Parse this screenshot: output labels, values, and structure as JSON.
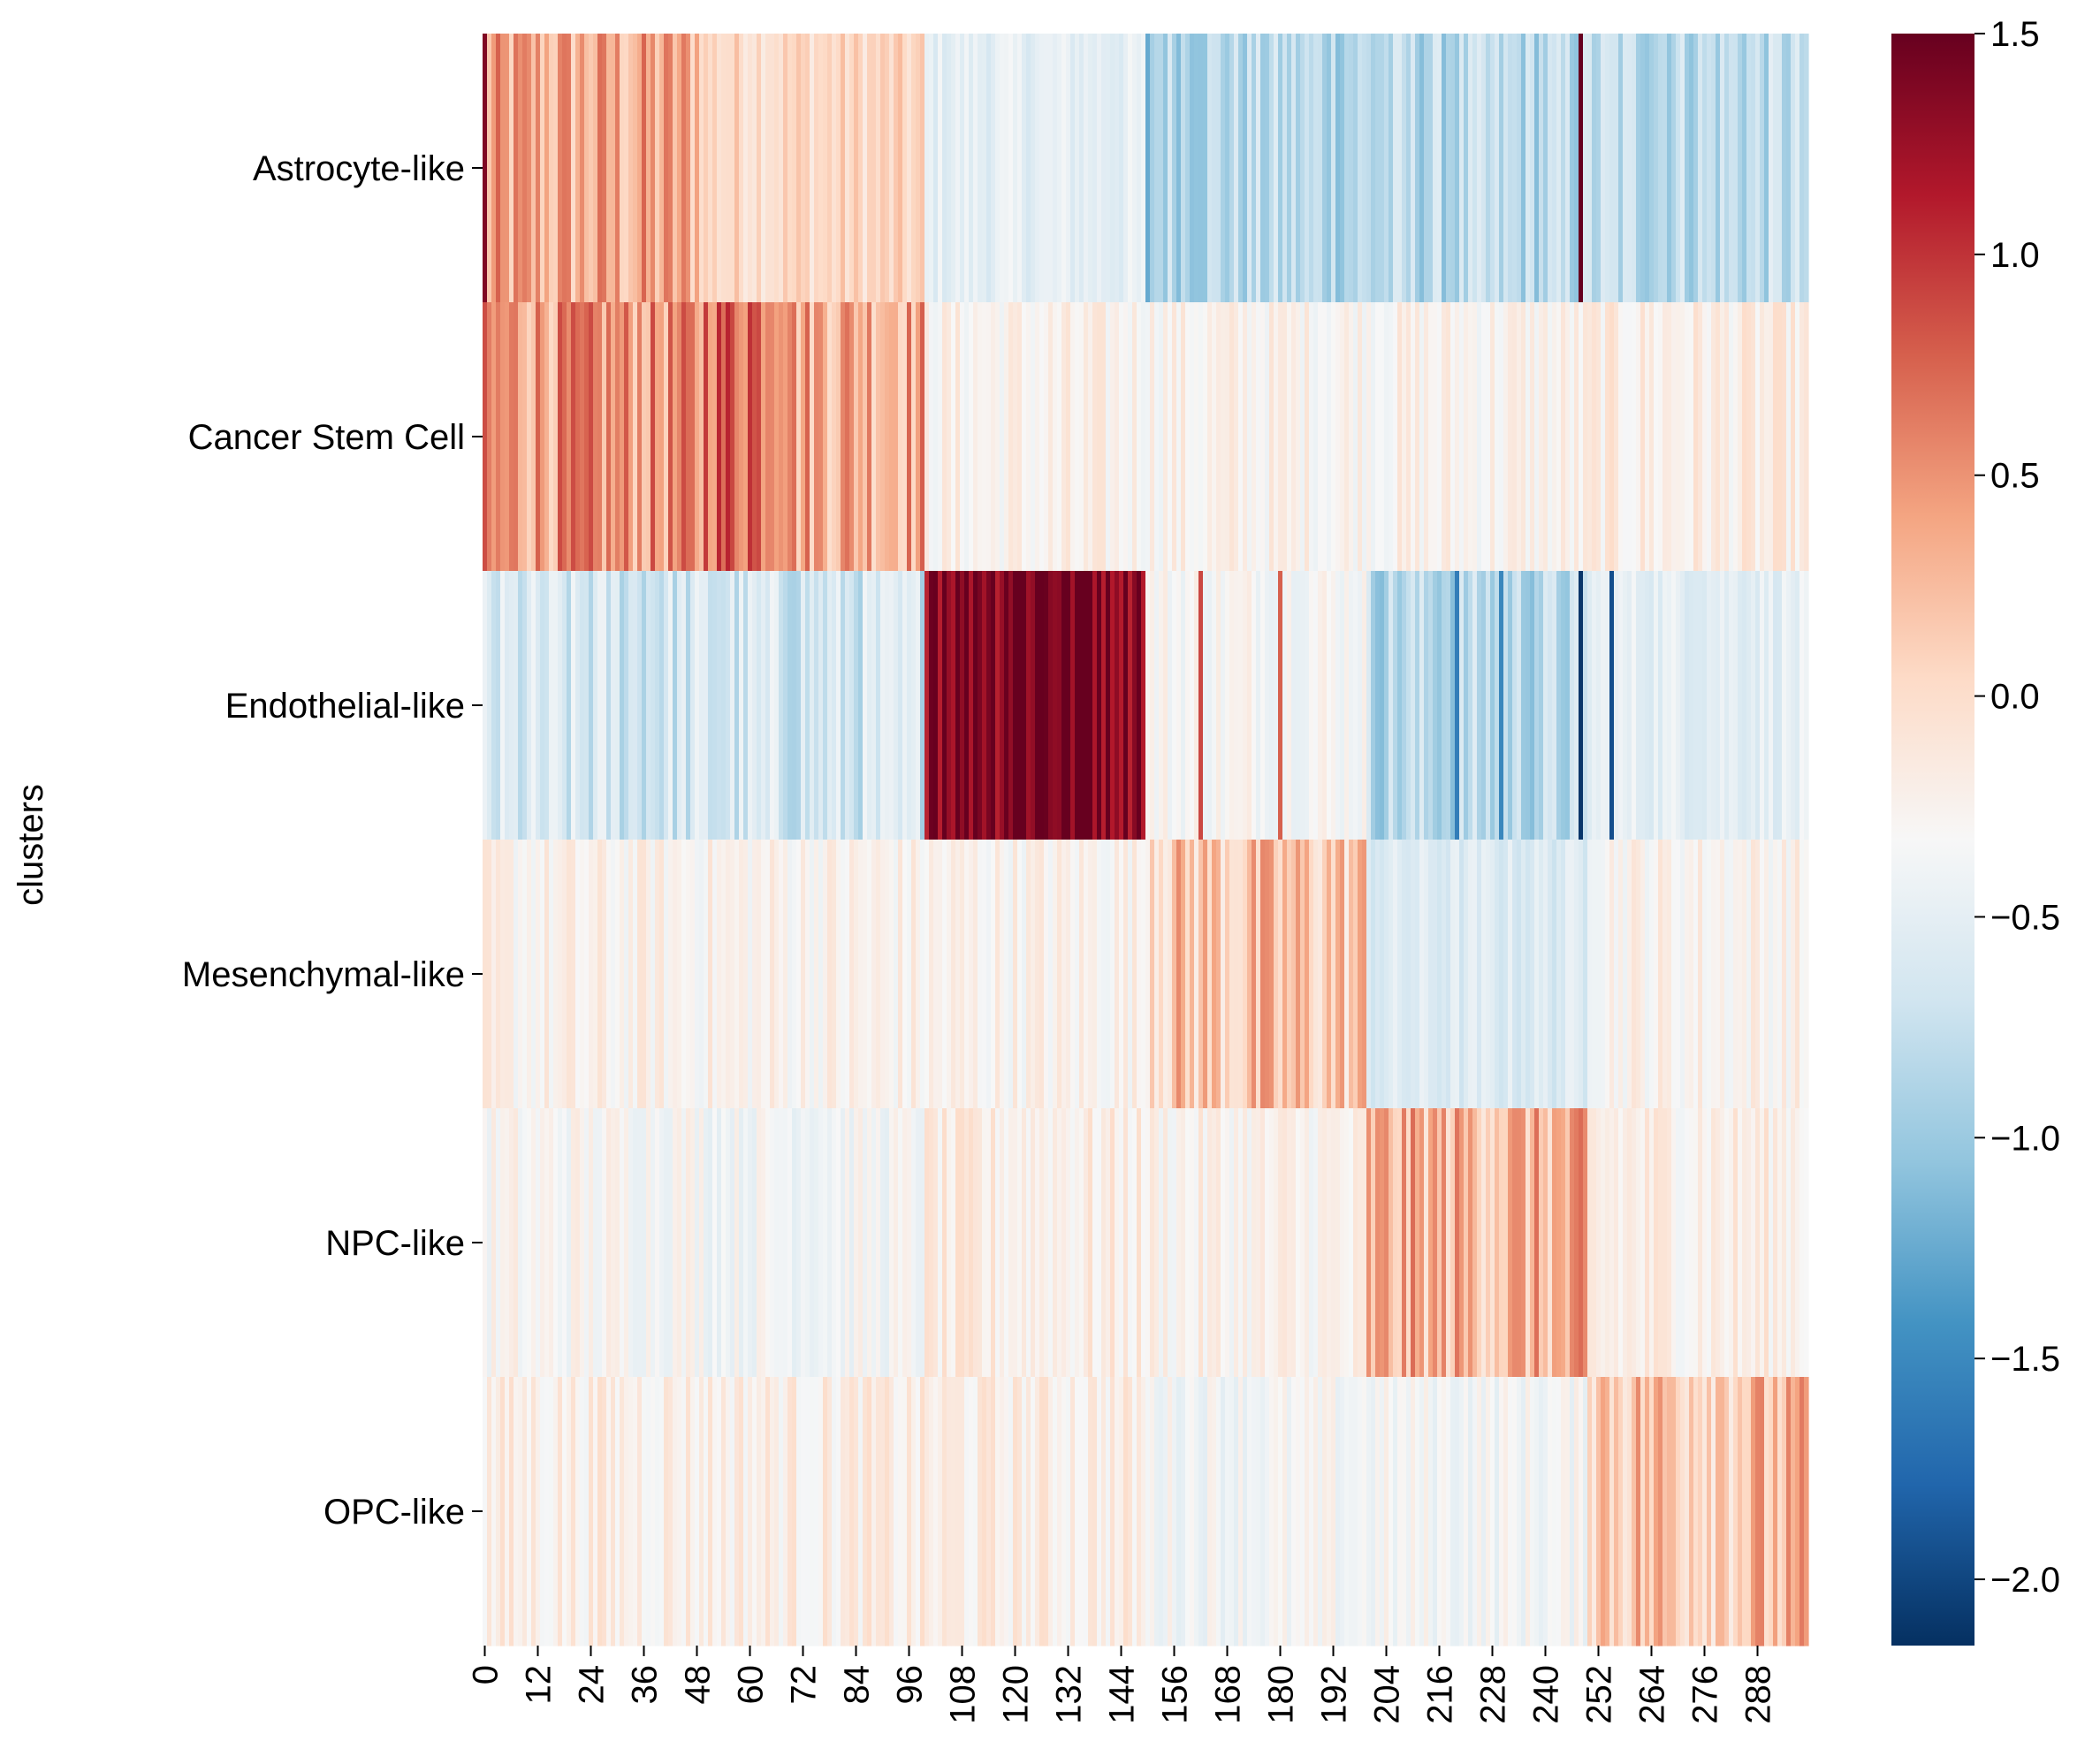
{
  "chart_data": {
    "type": "heatmap",
    "ylabel": "clusters",
    "xlabel": "",
    "title": "",
    "rows": [
      "Astrocyte-like",
      "Cancer Stem Cell",
      "Endothelial-like",
      "Mesenchymal-like",
      "NPC-like",
      "OPC-like"
    ],
    "n_columns": 300,
    "x_tick_labels": [
      "0",
      "12",
      "24",
      "36",
      "48",
      "60",
      "72",
      "84",
      "96",
      "108",
      "120",
      "132",
      "144",
      "156",
      "168",
      "180",
      "192",
      "204",
      "216",
      "228",
      "240",
      "252",
      "264",
      "276",
      "288"
    ],
    "x_tick_values": [
      0,
      12,
      24,
      36,
      48,
      60,
      72,
      84,
      96,
      108,
      120,
      132,
      144,
      156,
      168,
      180,
      192,
      204,
      216,
      228,
      240,
      252,
      264,
      276,
      288
    ],
    "colorbar": {
      "colormap": "RdBu_r",
      "vmin": -2.15,
      "vmax": 1.5,
      "center": 0,
      "tick_values": [
        1.5,
        1.0,
        0.5,
        0.0,
        -0.5,
        -1.0,
        -1.5,
        -2.0
      ],
      "tick_labels": [
        "1.5",
        "1.0",
        "0.5",
        "0.0",
        "−0.5",
        "−1.0",
        "−1.5",
        "−2.0"
      ]
    },
    "blocks": [
      {
        "row": "Astrocyte-like",
        "ranges": [
          {
            "from": 0,
            "to": 50,
            "level": 0.55
          },
          {
            "from": 50,
            "to": 100,
            "level": 0.3
          },
          {
            "from": 100,
            "to": 150,
            "level": -0.2
          },
          {
            "from": 150,
            "to": 250,
            "level": -0.6
          },
          {
            "from": 250,
            "to": 300,
            "level": -0.55
          }
        ]
      },
      {
        "row": "Cancer Stem Cell",
        "ranges": [
          {
            "from": 0,
            "to": 50,
            "level": 0.65
          },
          {
            "from": 50,
            "to": 70,
            "level": 0.9
          },
          {
            "from": 70,
            "to": 100,
            "level": 0.6
          },
          {
            "from": 100,
            "to": 250,
            "level": 0.05
          },
          {
            "from": 250,
            "to": 300,
            "level": 0.1
          }
        ]
      },
      {
        "row": "Endothelial-like",
        "ranges": [
          {
            "from": 0,
            "to": 100,
            "level": -0.4
          },
          {
            "from": 100,
            "to": 150,
            "level": 1.5
          },
          {
            "from": 150,
            "to": 200,
            "level": 0.0
          },
          {
            "from": 200,
            "to": 250,
            "level": -0.6
          },
          {
            "from": 250,
            "to": 300,
            "level": -0.2
          }
        ]
      },
      {
        "row": "Mesenchymal-like",
        "ranges": [
          {
            "from": 0,
            "to": 150,
            "level": 0.05
          },
          {
            "from": 150,
            "to": 200,
            "level": 0.4
          },
          {
            "from": 200,
            "to": 250,
            "level": -0.3
          },
          {
            "from": 250,
            "to": 300,
            "level": 0.05
          }
        ]
      },
      {
        "row": "NPC-like",
        "ranges": [
          {
            "from": 0,
            "to": 50,
            "level": 0.0
          },
          {
            "from": 50,
            "to": 100,
            "level": -0.05
          },
          {
            "from": 100,
            "to": 150,
            "level": 0.1
          },
          {
            "from": 150,
            "to": 200,
            "level": 0.05
          },
          {
            "from": 200,
            "to": 250,
            "level": 0.5
          },
          {
            "from": 250,
            "to": 300,
            "level": 0.1
          }
        ]
      },
      {
        "row": "OPC-like",
        "ranges": [
          {
            "from": 0,
            "to": 150,
            "level": 0.1
          },
          {
            "from": 150,
            "to": 250,
            "level": -0.05
          },
          {
            "from": 250,
            "to": 300,
            "level": 0.45
          }
        ]
      }
    ]
  }
}
